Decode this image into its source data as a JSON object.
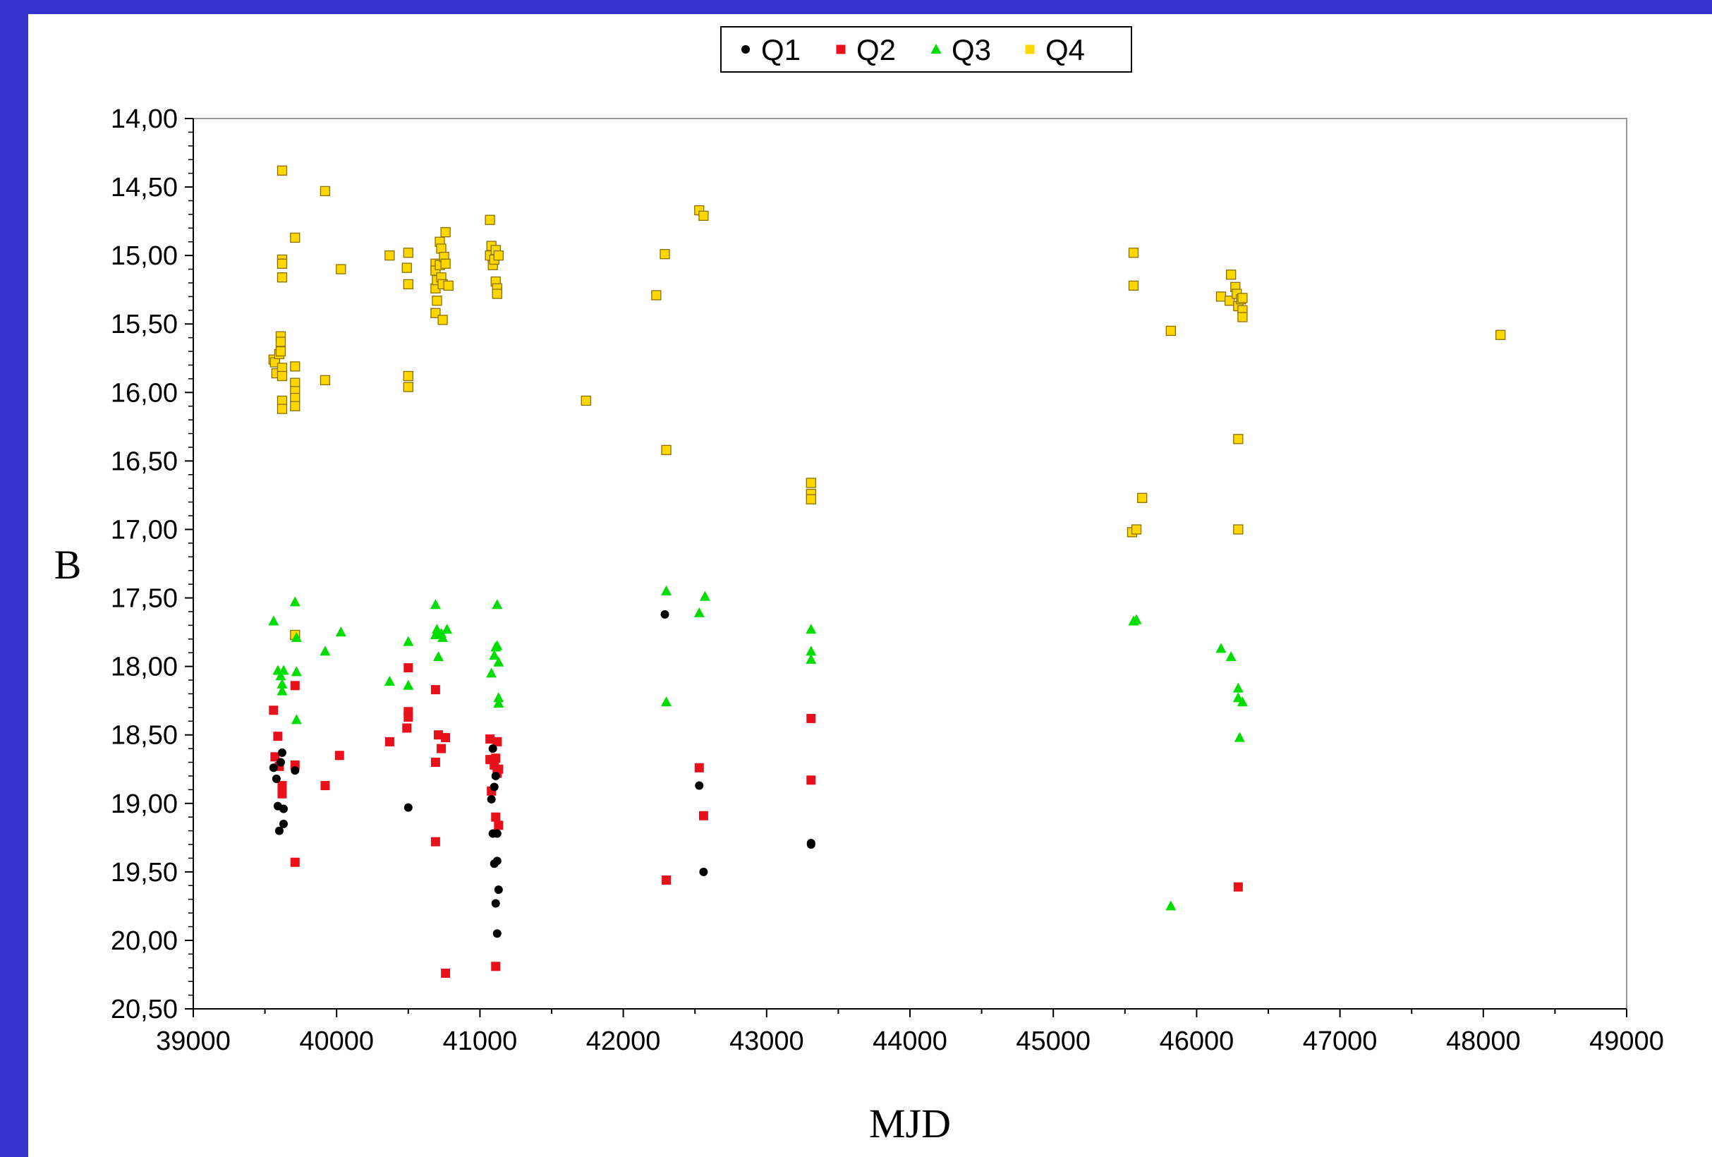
{
  "chart_data": {
    "type": "scatter",
    "title": "",
    "xlabel": "MJD",
    "ylabel": "B",
    "xlim": [
      39000,
      49000
    ],
    "ylim": [
      14.0,
      20.5
    ],
    "y_inverted": true,
    "grid": false,
    "legend": "top-center",
    "x_ticks": [
      "39000",
      "40000",
      "41000",
      "42000",
      "43000",
      "44000",
      "45000",
      "46000",
      "47000",
      "48000",
      "49000"
    ],
    "y_ticks": [
      "14,00",
      "14,50",
      "15,00",
      "15,50",
      "16,00",
      "16,50",
      "17,00",
      "17,50",
      "18,00",
      "18,50",
      "19,00",
      "19,50",
      "20,00",
      "20,50"
    ],
    "series": [
      {
        "name": "Q1",
        "color": "#000000",
        "marker": "circle",
        "points": [
          [
            39560,
            18.74
          ],
          [
            39580,
            18.82
          ],
          [
            39590,
            19.02
          ],
          [
            39600,
            19.2
          ],
          [
            39610,
            18.7
          ],
          [
            39620,
            18.63
          ],
          [
            39630,
            19.04
          ],
          [
            39630,
            19.15
          ],
          [
            39710,
            18.76
          ],
          [
            40500,
            19.03
          ],
          [
            42290,
            17.62
          ],
          [
            42530,
            18.87
          ],
          [
            42560,
            19.5
          ],
          [
            43310,
            19.29
          ],
          [
            43310,
            19.3
          ],
          [
            41080,
            18.97
          ],
          [
            41090,
            19.22
          ],
          [
            41100,
            18.88
          ],
          [
            41110,
            18.8
          ],
          [
            41100,
            19.44
          ],
          [
            41120,
            19.42
          ],
          [
            41120,
            19.22
          ],
          [
            41110,
            19.73
          ],
          [
            41130,
            19.63
          ],
          [
            41120,
            19.95
          ],
          [
            41090,
            18.6
          ]
        ]
      },
      {
        "name": "Q2",
        "color": "#e8101a",
        "marker": "square",
        "points": [
          [
            39560,
            18.32
          ],
          [
            39570,
            18.66
          ],
          [
            39590,
            18.51
          ],
          [
            39600,
            18.73
          ],
          [
            39620,
            18.87
          ],
          [
            39620,
            18.93
          ],
          [
            39710,
            18.14
          ],
          [
            39710,
            18.72
          ],
          [
            39710,
            19.43
          ],
          [
            39920,
            18.87
          ],
          [
            40020,
            18.65
          ],
          [
            40370,
            18.55
          ],
          [
            40490,
            18.45
          ],
          [
            40500,
            18.01
          ],
          [
            40500,
            18.33
          ],
          [
            40500,
            18.37
          ],
          [
            40690,
            18.17
          ],
          [
            40690,
            18.7
          ],
          [
            40690,
            19.28
          ],
          [
            40710,
            18.5
          ],
          [
            40730,
            18.6
          ],
          [
            40760,
            18.52
          ],
          [
            40760,
            20.24
          ],
          [
            41070,
            18.53
          ],
          [
            41070,
            18.68
          ],
          [
            41080,
            18.91
          ],
          [
            41100,
            18.72
          ],
          [
            41110,
            18.67
          ],
          [
            41120,
            18.78
          ],
          [
            41130,
            18.75
          ],
          [
            41120,
            18.55
          ],
          [
            41110,
            19.1
          ],
          [
            41130,
            19.16
          ],
          [
            41110,
            20.19
          ],
          [
            42300,
            19.56
          ],
          [
            42530,
            18.74
          ],
          [
            42560,
            19.09
          ],
          [
            43310,
            18.38
          ],
          [
            43310,
            18.83
          ],
          [
            46290,
            19.61
          ]
        ]
      },
      {
        "name": "Q3",
        "color": "#00dd00",
        "marker": "triangle",
        "points": [
          [
            39560,
            17.67
          ],
          [
            39590,
            18.03
          ],
          [
            39610,
            18.07
          ],
          [
            39620,
            18.13
          ],
          [
            39620,
            18.18
          ],
          [
            39630,
            18.03
          ],
          [
            39710,
            17.53
          ],
          [
            39720,
            17.79
          ],
          [
            39720,
            18.04
          ],
          [
            39720,
            18.39
          ],
          [
            39920,
            17.89
          ],
          [
            40030,
            17.75
          ],
          [
            40370,
            18.11
          ],
          [
            40500,
            17.82
          ],
          [
            40500,
            18.14
          ],
          [
            40690,
            17.55
          ],
          [
            40690,
            17.77
          ],
          [
            40700,
            17.73
          ],
          [
            40710,
            17.93
          ],
          [
            40730,
            17.76
          ],
          [
            40740,
            17.79
          ],
          [
            40770,
            17.73
          ],
          [
            41080,
            18.05
          ],
          [
            41100,
            17.92
          ],
          [
            41110,
            17.86
          ],
          [
            41120,
            17.55
          ],
          [
            41120,
            17.85
          ],
          [
            41130,
            17.97
          ],
          [
            41130,
            18.23
          ],
          [
            41130,
            18.27
          ],
          [
            42300,
            17.45
          ],
          [
            42300,
            18.26
          ],
          [
            42530,
            17.61
          ],
          [
            42570,
            17.49
          ],
          [
            43310,
            17.73
          ],
          [
            43310,
            17.89
          ],
          [
            43310,
            17.95
          ],
          [
            45560,
            17.67
          ],
          [
            45580,
            17.66
          ],
          [
            45820,
            19.75
          ],
          [
            46170,
            17.87
          ],
          [
            46240,
            17.93
          ],
          [
            46290,
            18.16
          ],
          [
            46290,
            18.23
          ],
          [
            46300,
            18.52
          ],
          [
            46320,
            18.26
          ]
        ]
      },
      {
        "name": "Q4",
        "color": "#ffd700",
        "marker": "square",
        "points": [
          [
            39560,
            15.76
          ],
          [
            39570,
            15.78
          ],
          [
            39580,
            15.86
          ],
          [
            39600,
            15.72
          ],
          [
            39610,
            15.59
          ],
          [
            39610,
            15.63
          ],
          [
            39610,
            15.7
          ],
          [
            39620,
            15.82
          ],
          [
            39620,
            15.88
          ],
          [
            39620,
            16.06
          ],
          [
            39620,
            16.12
          ],
          [
            39620,
            15.03
          ],
          [
            39620,
            15.06
          ],
          [
            39620,
            15.16
          ],
          [
            39620,
            14.38
          ],
          [
            39710,
            14.87
          ],
          [
            39710,
            15.81
          ],
          [
            39710,
            15.93
          ],
          [
            39710,
            15.99
          ],
          [
            39710,
            16.04
          ],
          [
            39710,
            16.1
          ],
          [
            39710,
            17.77
          ],
          [
            39920,
            14.53
          ],
          [
            39920,
            15.91
          ],
          [
            40030,
            15.1
          ],
          [
            40370,
            15.0
          ],
          [
            40490,
            15.09
          ],
          [
            40500,
            14.98
          ],
          [
            40500,
            15.21
          ],
          [
            40500,
            15.88
          ],
          [
            40500,
            15.96
          ],
          [
            40690,
            15.06
          ],
          [
            40690,
            15.11
          ],
          [
            40690,
            15.24
          ],
          [
            40690,
            15.42
          ],
          [
            40700,
            15.33
          ],
          [
            40700,
            15.18
          ],
          [
            40720,
            15.07
          ],
          [
            40720,
            14.9
          ],
          [
            40730,
            15.16
          ],
          [
            40730,
            14.95
          ],
          [
            40740,
            15.21
          ],
          [
            40740,
            15.47
          ],
          [
            40750,
            15.01
          ],
          [
            40760,
            14.83
          ],
          [
            40760,
            15.06
          ],
          [
            40780,
            15.22
          ],
          [
            41070,
            14.74
          ],
          [
            41070,
            15.0
          ],
          [
            41080,
            14.93
          ],
          [
            41090,
            15.07
          ],
          [
            41100,
            15.03
          ],
          [
            41110,
            14.96
          ],
          [
            41110,
            15.19
          ],
          [
            41120,
            15.24
          ],
          [
            41120,
            15.28
          ],
          [
            41130,
            15.0
          ],
          [
            41740,
            16.06
          ],
          [
            42230,
            15.29
          ],
          [
            42290,
            14.99
          ],
          [
            42300,
            16.42
          ],
          [
            42530,
            14.67
          ],
          [
            42560,
            14.71
          ],
          [
            43310,
            16.66
          ],
          [
            43310,
            16.74
          ],
          [
            43310,
            16.78
          ],
          [
            45550,
            17.02
          ],
          [
            45560,
            14.98
          ],
          [
            45560,
            15.22
          ],
          [
            45580,
            17.0
          ],
          [
            45620,
            16.77
          ],
          [
            45820,
            15.55
          ],
          [
            46170,
            15.3
          ],
          [
            46230,
            15.33
          ],
          [
            46240,
            15.14
          ],
          [
            46270,
            15.23
          ],
          [
            46280,
            15.28
          ],
          [
            46290,
            15.37
          ],
          [
            46290,
            16.34
          ],
          [
            46290,
            17.0
          ],
          [
            46310,
            15.32
          ],
          [
            46320,
            15.31
          ],
          [
            46320,
            15.4
          ],
          [
            46320,
            15.45
          ],
          [
            48120,
            15.58
          ]
        ]
      }
    ]
  }
}
